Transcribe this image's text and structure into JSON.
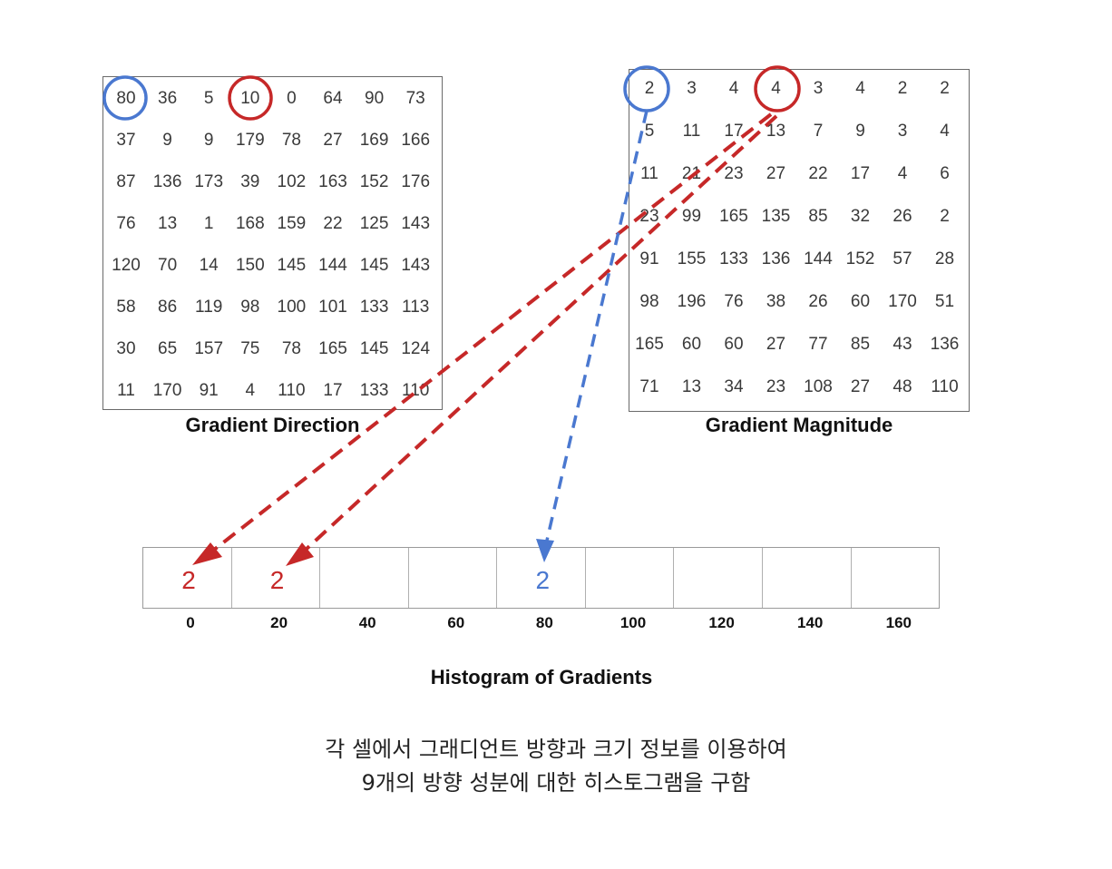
{
  "direction": {
    "caption": "Gradient Direction",
    "rows": [
      [
        "80",
        "36",
        "5",
        "10",
        "0",
        "64",
        "90",
        "73"
      ],
      [
        "37",
        "9",
        "9",
        "179",
        "78",
        "27",
        "169",
        "166"
      ],
      [
        "87",
        "136",
        "173",
        "39",
        "102",
        "163",
        "152",
        "176"
      ],
      [
        "76",
        "13",
        "1",
        "168",
        "159",
        "22",
        "125",
        "143"
      ],
      [
        "120",
        "70",
        "14",
        "150",
        "145",
        "144",
        "145",
        "143"
      ],
      [
        "58",
        "86",
        "119",
        "98",
        "100",
        "101",
        "133",
        "113"
      ],
      [
        "30",
        "65",
        "157",
        "75",
        "78",
        "165",
        "145",
        "124"
      ],
      [
        "11",
        "170",
        "91",
        "4",
        "110",
        "17",
        "133",
        "110"
      ]
    ]
  },
  "magnitude": {
    "caption": "Gradient Magnitude",
    "rows": [
      [
        "2",
        "3",
        "4",
        "4",
        "3",
        "4",
        "2",
        "2"
      ],
      [
        "5",
        "11",
        "17",
        "13",
        "7",
        "9",
        "3",
        "4"
      ],
      [
        "11",
        "21",
        "23",
        "27",
        "22",
        "17",
        "4",
        "6"
      ],
      [
        "23",
        "99",
        "165",
        "135",
        "85",
        "32",
        "26",
        "2"
      ],
      [
        "91",
        "155",
        "133",
        "136",
        "144",
        "152",
        "57",
        "28"
      ],
      [
        "98",
        "196",
        "76",
        "38",
        "26",
        "60",
        "170",
        "51"
      ],
      [
        "165",
        "60",
        "60",
        "27",
        "77",
        "85",
        "43",
        "136"
      ],
      [
        "71",
        "13",
        "34",
        "23",
        "108",
        "27",
        "48",
        "110"
      ]
    ]
  },
  "histogram": {
    "caption": "Histogram of Gradients",
    "bins": [
      "0",
      "20",
      "40",
      "60",
      "80",
      "100",
      "120",
      "140",
      "160"
    ],
    "values": [
      "2",
      "2",
      "",
      "",
      "2",
      "",
      "",
      "",
      ""
    ],
    "value_colors": [
      "#c62828",
      "#c62828",
      "",
      "",
      "#4a78d0",
      "",
      "",
      "",
      ""
    ]
  },
  "highlights": {
    "blue_color": "#4a78d0",
    "red_color": "#c62828"
  },
  "note": {
    "line1": "각 셀에서 그래디언트 방향과 크기 정보를 이용하여",
    "line2": "9개의 방향 성분에 대한 히스토그램을 구함"
  }
}
